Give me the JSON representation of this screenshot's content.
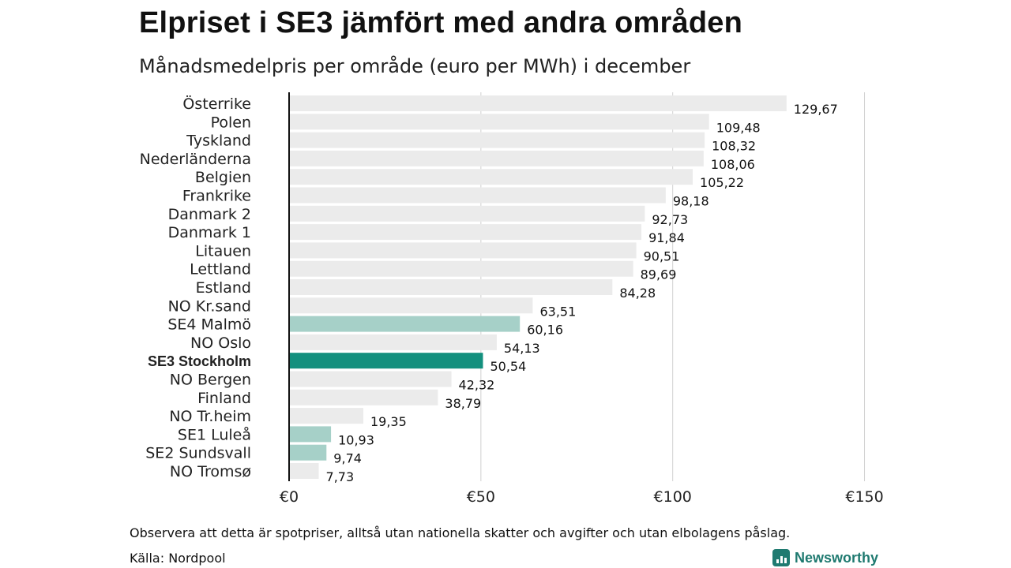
{
  "title": "Elpriset i SE3 jämfört med andra områden",
  "subtitle": "Månadsmedelpris per område (euro per MWh) i december",
  "note": "Observera att detta är spotpriser, alltså utan nationella skatter och avgifter och utan elbolagens påslag.",
  "source": "Källa: Nordpool",
  "brand": "Newsworthy",
  "colors": {
    "default_bar": "#ebebeb",
    "se_bar": "#a6d0c8",
    "highlight_bar": "#13907e",
    "brand": "#1f7a70"
  },
  "chart_data": {
    "type": "bar",
    "orientation": "horizontal",
    "categories": [
      "Österrike",
      "Polen",
      "Tyskland",
      "Nederländerna",
      "Belgien",
      "Frankrike",
      "Danmark  2",
      "Danmark  1",
      "Litauen",
      "Lettland",
      "Estland",
      "NO Kr.sand",
      "SE4  Malmö",
      "NO Oslo",
      "SE3 Stockholm",
      "NO Bergen",
      "Finland",
      "NO Tr.heim",
      "SE1  Luleå",
      "SE2  Sundsvall",
      "NO Tromsø"
    ],
    "values": [
      129.67,
      109.48,
      108.32,
      108.06,
      105.22,
      98.18,
      92.73,
      91.84,
      90.51,
      89.69,
      84.28,
      63.51,
      60.16,
      54.13,
      50.54,
      42.32,
      38.79,
      19.35,
      10.93,
      9.74,
      7.73
    ],
    "value_labels": [
      "129,67",
      "109,48",
      "108,32",
      "108,06",
      "105,22",
      "98,18",
      "92,73",
      "91,84",
      "90,51",
      "89,69",
      "84,28",
      "63,51",
      "60,16",
      "54,13",
      "50,54",
      "42,32",
      "38,79",
      "19,35",
      "10,93",
      "9,74",
      "7,73"
    ],
    "bar_style": [
      "default",
      "default",
      "default",
      "default",
      "default",
      "default",
      "default",
      "default",
      "default",
      "default",
      "default",
      "default",
      "se",
      "default",
      "highlight",
      "default",
      "default",
      "default",
      "se",
      "se",
      "default"
    ],
    "highlight_category": "SE3 Stockholm",
    "x_ticks": [
      0,
      50,
      100,
      150
    ],
    "x_tick_labels": [
      "€0",
      "€50",
      "€100",
      "€150"
    ],
    "xlim": [
      0,
      150
    ],
    "grid": true
  }
}
